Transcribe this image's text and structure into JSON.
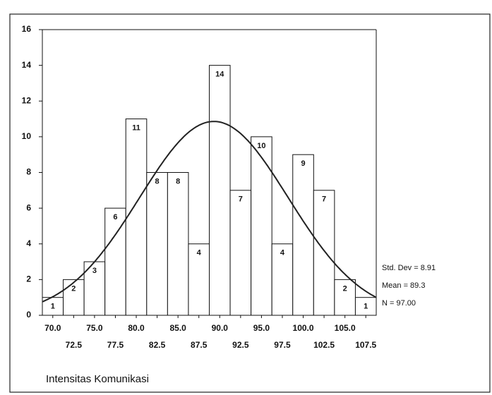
{
  "chart_data": {
    "type": "histogram",
    "x_label": "Intensitas Komunikasi",
    "bins": [
      68.75,
      71.25,
      73.75,
      76.25,
      78.75,
      81.25,
      83.75,
      86.25,
      88.75,
      91.25,
      93.75,
      96.25,
      98.75,
      101.25,
      103.75,
      106.25,
      108.75
    ],
    "values": [
      1,
      2,
      3,
      6,
      11,
      8,
      8,
      4,
      14,
      7,
      10,
      4,
      9,
      7,
      2,
      1
    ],
    "color": "#ffffff",
    "xlim": [
      68.75,
      108.75
    ],
    "xticks": [
      {
        "value": 70,
        "label": "70.0"
      },
      {
        "value": 72.5,
        "label": "72.5"
      },
      {
        "value": 75,
        "label": "75.0"
      },
      {
        "value": 77.5,
        "label": "77.5"
      },
      {
        "value": 80,
        "label": "80.0"
      },
      {
        "value": 82.5,
        "label": "82.5"
      },
      {
        "value": 85,
        "label": "85.0"
      },
      {
        "value": 87.5,
        "label": "87.5"
      },
      {
        "value": 90,
        "label": "90.0"
      },
      {
        "value": 92.5,
        "label": "92.5"
      },
      {
        "value": 95,
        "label": "95.0"
      },
      {
        "value": 97.5,
        "label": "97.5"
      },
      {
        "value": 100,
        "label": "100.0"
      },
      {
        "value": 102.5,
        "label": "102.5"
      },
      {
        "value": 105,
        "label": "105.0"
      },
      {
        "value": 107.5,
        "label": "107.5"
      }
    ],
    "ylim": [
      0,
      16
    ],
    "yticks": [
      0,
      2,
      4,
      6,
      8,
      10,
      12,
      14,
      16
    ],
    "stats": [
      {
        "value": 8.91,
        "label": "Std. Dev = 8.91"
      },
      {
        "value": 89.3,
        "label": "Mean = 89.3"
      },
      {
        "value": 97,
        "label": "N = 97.00"
      }
    ],
    "curve_color": "#222222"
  }
}
